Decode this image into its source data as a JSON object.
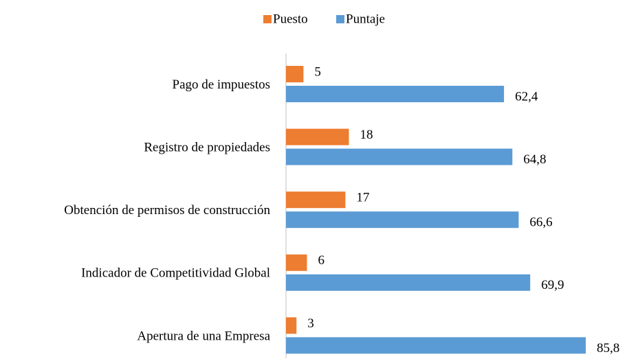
{
  "chart_data": {
    "type": "hbar",
    "categories": [
      "Pago de impuestos",
      "Registro de propiedades",
      "Obtención de permisos de construcción",
      "Indicador de Competitividad Global",
      "Apertura de una Empresa"
    ],
    "series": [
      {
        "name": "Puesto",
        "color": "#ed7d31",
        "values": [
          5,
          18,
          17,
          6,
          3
        ]
      },
      {
        "name": "Puntaje",
        "color": "#5b9bd5",
        "values": [
          62.4,
          64.8,
          66.6,
          69.9,
          85.8
        ],
        "value_labels": [
          "62,4",
          "64,8",
          "66,6",
          "69,9",
          "85,8"
        ]
      }
    ],
    "legend": "top"
  }
}
